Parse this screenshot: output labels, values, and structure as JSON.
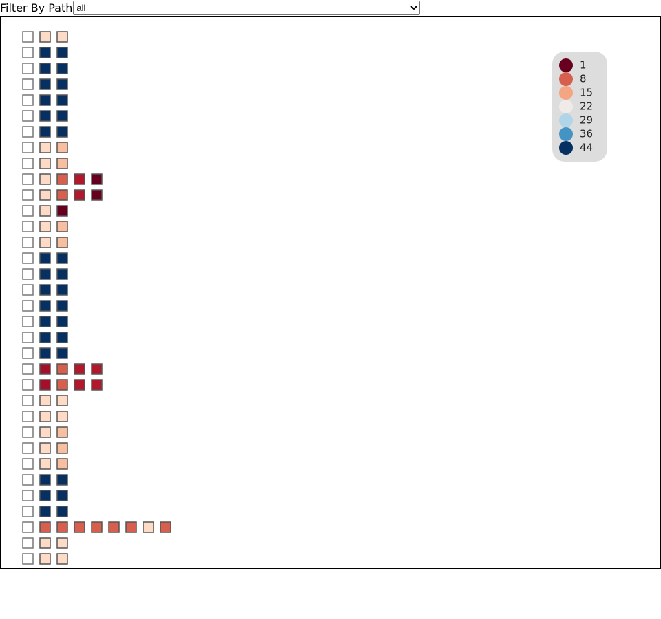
{
  "filter": {
    "label": "Filter By Path",
    "selected": "all"
  },
  "legend": [
    {
      "value": 1,
      "color": "#67001f"
    },
    {
      "value": 8,
      "color": "#d6604d"
    },
    {
      "value": 15,
      "color": "#f4a582"
    },
    {
      "value": 22,
      "color": "#f0ebe8"
    },
    {
      "value": 29,
      "color": "#b0d4e8"
    },
    {
      "value": 36,
      "color": "#4393c3"
    },
    {
      "value": 44,
      "color": "#053061"
    }
  ],
  "rows": [
    [
      "#ffffff",
      "#fddbc7",
      "#fddbc7"
    ],
    [
      "#ffffff",
      "#053061",
      "#053061"
    ],
    [
      "#ffffff",
      "#053061",
      "#053061"
    ],
    [
      "#ffffff",
      "#053061",
      "#053061"
    ],
    [
      "#ffffff",
      "#053061",
      "#053061"
    ],
    [
      "#ffffff",
      "#053061",
      "#053061"
    ],
    [
      "#ffffff",
      "#053061",
      "#053061"
    ],
    [
      "#ffffff",
      "#fddbc7",
      "#f7bea0"
    ],
    [
      "#ffffff",
      "#fddbc7",
      "#f7bea0"
    ],
    [
      "#ffffff",
      "#fddbc7",
      "#d6604d",
      "#b2182b",
      "#67001f"
    ],
    [
      "#ffffff",
      "#fddbc7",
      "#d6604d",
      "#b2182b",
      "#67001f"
    ],
    [
      "#ffffff",
      "#fddbc7",
      "#67001f"
    ],
    [
      "#ffffff",
      "#fddbc7",
      "#f7bea0"
    ],
    [
      "#ffffff",
      "#fddbc7",
      "#f7bea0"
    ],
    [
      "#ffffff",
      "#053061",
      "#053061"
    ],
    [
      "#ffffff",
      "#053061",
      "#053061"
    ],
    [
      "#ffffff",
      "#053061",
      "#053061"
    ],
    [
      "#ffffff",
      "#053061",
      "#053061"
    ],
    [
      "#ffffff",
      "#053061",
      "#053061"
    ],
    [
      "#ffffff",
      "#053061",
      "#053061"
    ],
    [
      "#ffffff",
      "#053061",
      "#053061"
    ],
    [
      "#ffffff",
      "#a50f2b",
      "#d6604d",
      "#b2182b",
      "#b2182b"
    ],
    [
      "#ffffff",
      "#a50f2b",
      "#d6604d",
      "#b2182b",
      "#b2182b"
    ],
    [
      "#ffffff",
      "#fddbc7",
      "#fddbc7"
    ],
    [
      "#ffffff",
      "#fddbc7",
      "#fddbc7"
    ],
    [
      "#ffffff",
      "#fddbc7",
      "#f7bea0"
    ],
    [
      "#ffffff",
      "#fddbc7",
      "#f7bea0"
    ],
    [
      "#ffffff",
      "#fddbc7",
      "#f7bea0"
    ],
    [
      "#ffffff",
      "#053061",
      "#053061"
    ],
    [
      "#ffffff",
      "#053061",
      "#053061"
    ],
    [
      "#ffffff",
      "#053061",
      "#053061"
    ],
    [
      "#ffffff",
      "#d6604d",
      "#d6604d",
      "#d6604d",
      "#d6604d",
      "#d6604d",
      "#d6604d",
      "#fddbc7",
      "#d6604d"
    ],
    [
      "#ffffff",
      "#fddbc7",
      "#fddbc7"
    ],
    [
      "#ffffff",
      "#fddbc7",
      "#fddbc7"
    ]
  ]
}
